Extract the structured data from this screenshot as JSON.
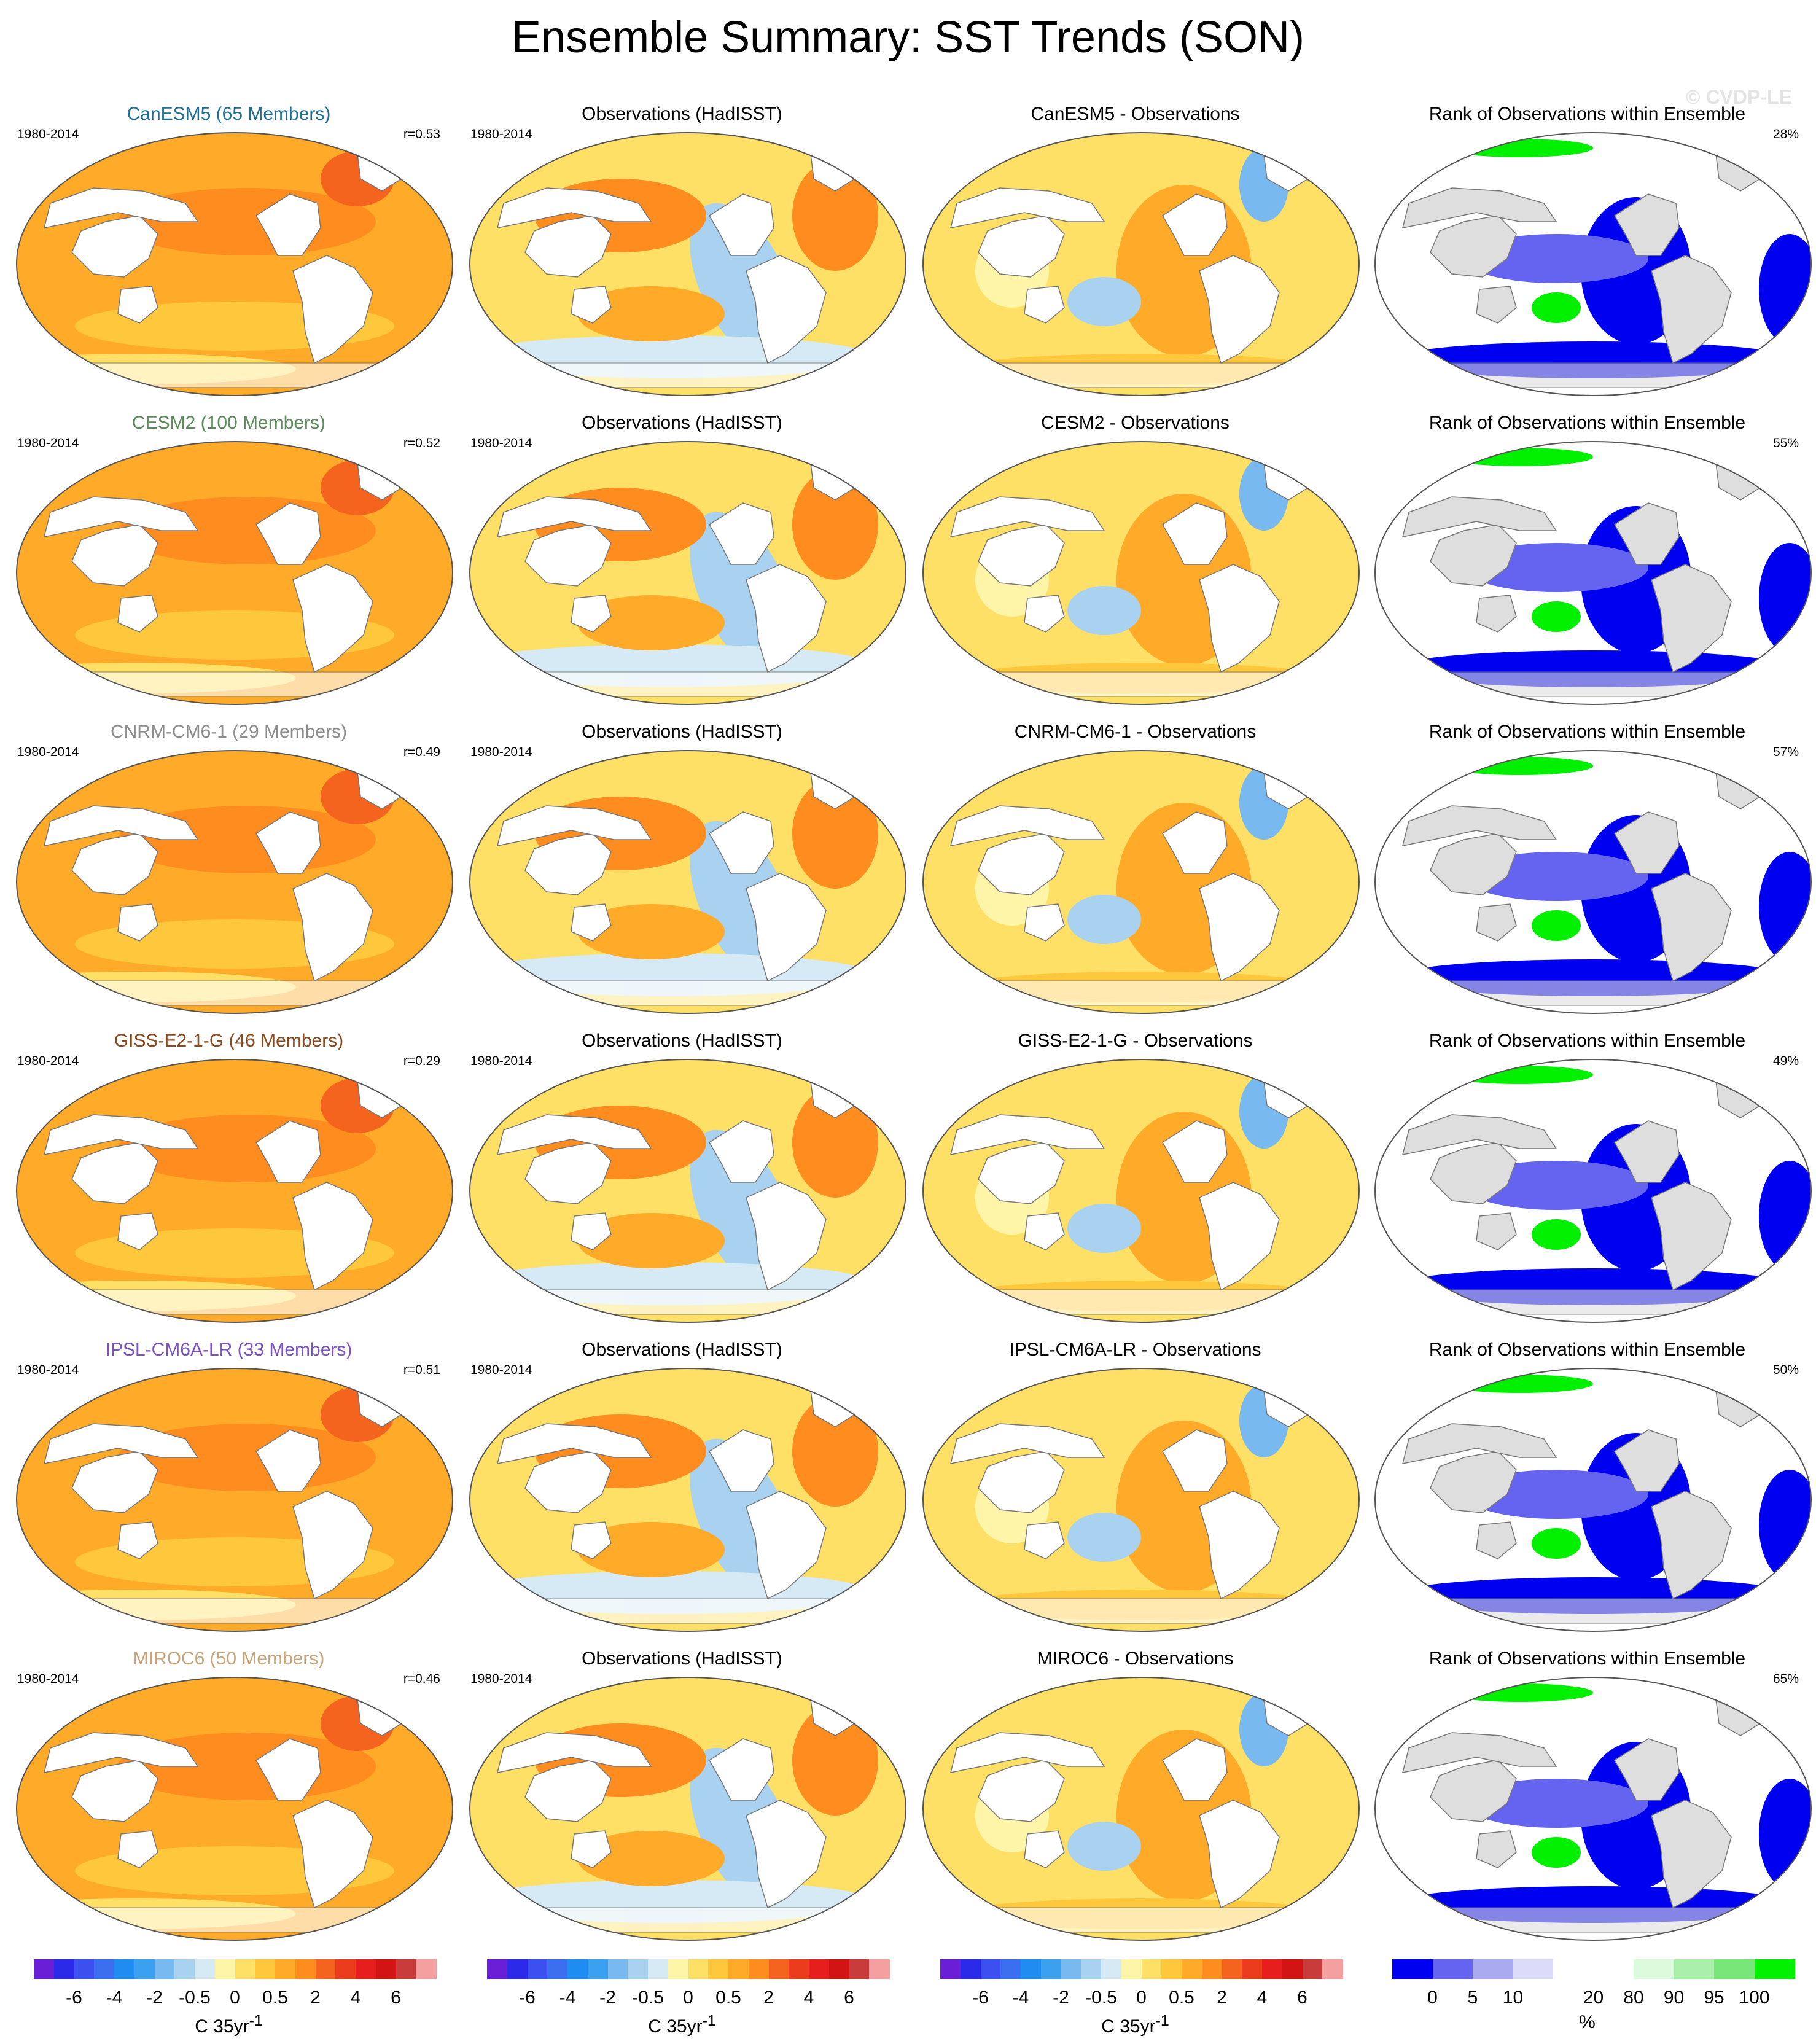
{
  "title": "Ensemble Summary: SST Trends (SON)",
  "watermark": "© CVDP-LE",
  "period": "1980-2014",
  "obs_title": "Observations (HadISST)",
  "rank_title": "Rank of Observations within Ensemble",
  "rows": [
    {
      "model_title": "CanESM5 (65 Members)",
      "title_color": "#1e6e96",
      "r": "r=0.53",
      "diff_title": "CanESM5 - Observations",
      "rank_pct": "28%"
    },
    {
      "model_title": "CESM2 (100 Members)",
      "title_color": "#5b8a5b",
      "r": "r=0.52",
      "diff_title": "CESM2 - Observations",
      "rank_pct": "55%"
    },
    {
      "model_title": "CNRM-CM6-1 (29 Members)",
      "title_color": "#8c8c8c",
      "r": "r=0.49",
      "diff_title": "CNRM-CM6-1 - Observations",
      "rank_pct": "57%"
    },
    {
      "model_title": "GISS-E2-1-G (46 Members)",
      "title_color": "#8b4a1e",
      "r": "r=0.29",
      "diff_title": "GISS-E2-1-G - Observations",
      "rank_pct": "49%"
    },
    {
      "model_title": "IPSL-CM6A-LR (33 Members)",
      "title_color": "#7b52c4",
      "r": "r=0.51",
      "diff_title": "IPSL-CM6A-LR - Observations",
      "rank_pct": "50%"
    },
    {
      "model_title": "MIROC6 (50 Members)",
      "title_color": "#c8a47a",
      "r": "r=0.46",
      "diff_title": "MIROC6 - Observations",
      "rank_pct": "65%"
    }
  ],
  "trend_colorbar": {
    "colors": [
      "#6a1fd6",
      "#2a2ae8",
      "#3c50f0",
      "#3c6ef0",
      "#1e8cf0",
      "#3ca0f0",
      "#78b9f0",
      "#a8d2f0",
      "#d6eaf5",
      "#fff5a8",
      "#ffe066",
      "#ffc83c",
      "#ffaa28",
      "#ff8c1e",
      "#f5641e",
      "#ec3c1e",
      "#e61e1e",
      "#d21414",
      "#c83c3c",
      "#f5a0a0"
    ],
    "labels": [
      "-6",
      "-4",
      "-2",
      "-0.5",
      "0",
      "0.5",
      "2",
      "4",
      "6"
    ],
    "unit": "C 35yr",
    "unit_sup": "-1"
  },
  "rank_colorbar": {
    "colors": [
      "#0000f0",
      "#6464f0",
      "#aaaaf0",
      "#dcdcfa",
      "#ffffff",
      "#ffffff",
      "#dcfadc",
      "#aaf0aa",
      "#78e678",
      "#00f000"
    ],
    "labels": [
      "0",
      "5",
      "10",
      "20",
      "80",
      "90",
      "95",
      "100"
    ],
    "unit": "%"
  }
}
